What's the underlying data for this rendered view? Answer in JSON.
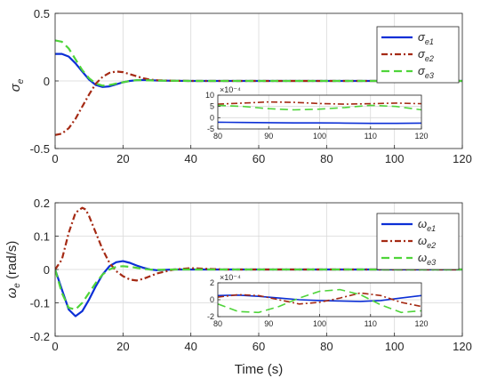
{
  "colors": {
    "series1": "#0b2fd6",
    "series2": "#a52a14",
    "series3": "#4fd43a",
    "grid": "#d9d9d9",
    "axis": "#262626"
  },
  "chart_data": [
    {
      "id": "sigma",
      "type": "line",
      "ylabel": {
        "sym": "σ",
        "sub": "e"
      },
      "xlabel": "",
      "xlim": [
        0,
        120
      ],
      "ylim": [
        -0.5,
        0.5
      ],
      "xticks": [
        0,
        20,
        40,
        60,
        80,
        100,
        120
      ],
      "xtick_labels": [
        "0",
        "20",
        "40",
        "60",
        "80",
        "100",
        "120"
      ],
      "yticks": [
        -0.5,
        0,
        0.5
      ],
      "ytick_labels": [
        "-0.5",
        "0",
        "0.5"
      ],
      "grid": true,
      "legend": {
        "position": "top-right",
        "entries": [
          {
            "sym": "σ",
            "sub": "e1"
          },
          {
            "sym": "σ",
            "sub": "e2"
          },
          {
            "sym": "σ",
            "sub": "e3"
          }
        ]
      },
      "series": [
        {
          "x": [
            0,
            2,
            4,
            6,
            8,
            10,
            12,
            14,
            16,
            18,
            20,
            22,
            24,
            26,
            28,
            30,
            35,
            40,
            50,
            60,
            80,
            100,
            120
          ],
          "y": [
            0.2,
            0.2,
            0.18,
            0.13,
            0.07,
            0.01,
            -0.03,
            -0.045,
            -0.04,
            -0.025,
            -0.01,
            0.0,
            0.005,
            0.007,
            0.005,
            0.003,
            0.001,
            0,
            0,
            0,
            0,
            0,
            0
          ]
        },
        {
          "x": [
            0,
            2,
            4,
            6,
            8,
            10,
            12,
            14,
            16,
            18,
            20,
            22,
            24,
            26,
            28,
            30,
            35,
            40,
            50,
            60,
            80,
            100,
            120
          ],
          "y": [
            -0.4,
            -0.39,
            -0.35,
            -0.28,
            -0.19,
            -0.1,
            -0.02,
            0.03,
            0.06,
            0.07,
            0.065,
            0.05,
            0.035,
            0.02,
            0.01,
            0.005,
            0.001,
            0,
            0,
            0,
            0,
            0,
            0
          ]
        },
        {
          "x": [
            0,
            2,
            4,
            6,
            8,
            10,
            12,
            14,
            16,
            18,
            20,
            22,
            24,
            26,
            28,
            30,
            35,
            40,
            50,
            60,
            80,
            100,
            120
          ],
          "y": [
            0.3,
            0.29,
            0.24,
            0.16,
            0.08,
            0.02,
            -0.02,
            -0.035,
            -0.03,
            -0.02,
            -0.01,
            0.0,
            0.005,
            0.005,
            0.004,
            0.002,
            0.001,
            0,
            0,
            0,
            0,
            0,
            0
          ]
        }
      ],
      "inset": {
        "xlim": [
          80,
          120
        ],
        "ylim": [
          -5,
          10
        ],
        "xticks": [
          80,
          90,
          100,
          110,
          120
        ],
        "xtick_labels": [
          "80",
          "90",
          "100",
          "110",
          "120"
        ],
        "yticks": [
          -5,
          0,
          5,
          10
        ],
        "ytick_labels": [
          "-5",
          "0",
          "5",
          "10"
        ],
        "exponent": "×10⁻⁴",
        "series": [
          {
            "x": [
              80,
              85,
              90,
              95,
              100,
              105,
              110,
              115,
              120
            ],
            "y": [
              -2,
              -2.1,
              -2.2,
              -2.3,
              -2.3,
              -2.4,
              -2.5,
              -2.5,
              -2.4
            ]
          },
          {
            "x": [
              80,
              85,
              90,
              95,
              100,
              105,
              110,
              115,
              120
            ],
            "y": [
              6,
              6.5,
              7,
              6.8,
              6.3,
              6,
              6.2,
              6.5,
              6.2
            ]
          },
          {
            "x": [
              80,
              85,
              90,
              95,
              100,
              105,
              110,
              115,
              120
            ],
            "y": [
              5.5,
              5,
              4,
              3.5,
              3.8,
              4.5,
              5.5,
              5,
              3.5
            ]
          }
        ]
      }
    },
    {
      "id": "omega",
      "type": "line",
      "ylabel": {
        "sym": "ω",
        "sub": "e",
        "unit": "(rad/s)"
      },
      "xlabel": "Time (s)",
      "xlim": [
        0,
        120
      ],
      "ylim": [
        -0.2,
        0.2
      ],
      "xticks": [
        0,
        20,
        40,
        60,
        80,
        100,
        120
      ],
      "xtick_labels": [
        "0",
        "20",
        "40",
        "60",
        "80",
        "100",
        "120"
      ],
      "yticks": [
        -0.2,
        -0.1,
        0,
        0.1,
        0.2
      ],
      "ytick_labels": [
        "-0.2",
        "-0.1",
        "0",
        "0.1",
        "0.2"
      ],
      "grid": true,
      "legend": {
        "position": "top-right",
        "entries": [
          {
            "sym": "ω",
            "sub": "e1"
          },
          {
            "sym": "ω",
            "sub": "e2"
          },
          {
            "sym": "ω",
            "sub": "e3"
          }
        ]
      },
      "series": [
        {
          "x": [
            0,
            2,
            4,
            6,
            8,
            10,
            12,
            14,
            16,
            18,
            20,
            22,
            24,
            26,
            28,
            30,
            35,
            40,
            50,
            60,
            80,
            100,
            120
          ],
          "y": [
            0,
            -0.06,
            -0.12,
            -0.14,
            -0.125,
            -0.09,
            -0.05,
            -0.015,
            0.01,
            0.022,
            0.025,
            0.02,
            0.012,
            0.005,
            0.0,
            -0.002,
            0.0,
            0,
            0,
            0,
            0,
            0,
            0
          ]
        },
        {
          "x": [
            0,
            2,
            4,
            6,
            8,
            9,
            10,
            12,
            14,
            16,
            18,
            20,
            22,
            24,
            26,
            28,
            30,
            35,
            40,
            45,
            50,
            60,
            80,
            100,
            120
          ],
          "y": [
            0,
            0.03,
            0.11,
            0.17,
            0.185,
            0.18,
            0.16,
            0.11,
            0.06,
            0.02,
            -0.005,
            -0.02,
            -0.03,
            -0.033,
            -0.028,
            -0.02,
            -0.012,
            0.0,
            0.004,
            0.002,
            0.0,
            0,
            0,
            0,
            0
          ]
        },
        {
          "x": [
            0,
            2,
            4,
            6,
            8,
            10,
            12,
            14,
            16,
            18,
            20,
            22,
            24,
            26,
            28,
            30,
            35,
            40,
            50,
            60,
            80,
            100,
            120
          ],
          "y": [
            0,
            -0.07,
            -0.115,
            -0.12,
            -0.1,
            -0.07,
            -0.04,
            -0.015,
            0.0,
            0.008,
            0.01,
            0.008,
            0.005,
            0.002,
            0.0,
            -0.001,
            0.0,
            0,
            0,
            0,
            0,
            0,
            0
          ]
        }
      ],
      "inset": {
        "xlim": [
          80,
          120
        ],
        "ylim": [
          -2,
          2
        ],
        "xticks": [
          80,
          90,
          100,
          110,
          120
        ],
        "xtick_labels": [
          "80",
          "90",
          "100",
          "110",
          "120"
        ],
        "yticks": [
          -2,
          0,
          2
        ],
        "ytick_labels": [
          "-2",
          "0",
          "2"
        ],
        "exponent": "×10⁻⁴",
        "series": [
          {
            "x": [
              80,
              84,
              88,
              92,
              96,
              100,
              104,
              108,
              112,
              116,
              120
            ],
            "y": [
              0.5,
              0.55,
              0.4,
              0.2,
              0.0,
              -0.1,
              -0.15,
              -0.2,
              -0.1,
              0.2,
              0.5
            ]
          },
          {
            "x": [
              80,
              84,
              88,
              92,
              96,
              100,
              104,
              108,
              112,
              116,
              120
            ],
            "y": [
              0.3,
              0.6,
              0.5,
              0.0,
              -0.5,
              -0.3,
              0.2,
              0.8,
              0.5,
              -0.3,
              -0.8
            ]
          },
          {
            "x": [
              80,
              84,
              88,
              92,
              96,
              100,
              104,
              108,
              112,
              116,
              120
            ],
            "y": [
              -0.5,
              -1.4,
              -1.5,
              -0.8,
              0.2,
              1.0,
              1.2,
              0.6,
              -0.6,
              -1.5,
              -1.3
            ]
          }
        ]
      }
    }
  ]
}
